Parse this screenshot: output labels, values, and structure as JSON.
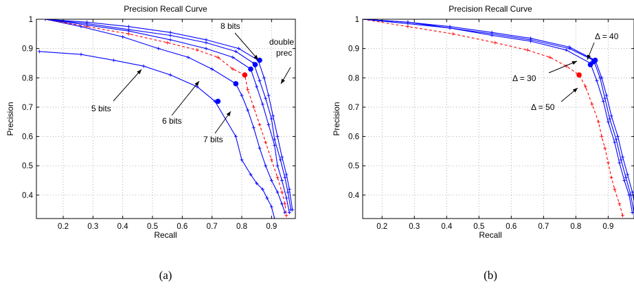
{
  "chart_data": [
    {
      "type": "line",
      "title": "Precision Recall Curve",
      "xlabel": "Recall",
      "ylabel": "Precision",
      "caption": "(a)",
      "xlim": [
        0.11,
        0.98
      ],
      "ylim": [
        0.32,
        1.0
      ],
      "xticks": [
        "0.2",
        "0.3",
        "0.4",
        "0.5",
        "0.6",
        "0.7",
        "0.8",
        "0.9"
      ],
      "yticks": [
        "0.4",
        "0.5",
        "0.6",
        "0.7",
        "0.8",
        "0.9",
        "1"
      ],
      "grid": true,
      "series": [
        {
          "color": "#0000ff",
          "dash": false,
          "x": [
            0.12,
            0.26,
            0.37,
            0.47,
            0.56,
            0.65,
            0.71,
            0.78,
            0.8,
            0.83,
            0.85,
            0.87,
            0.885,
            0.9,
            0.91
          ],
          "y": [
            0.89,
            0.88,
            0.86,
            0.84,
            0.81,
            0.77,
            0.72,
            0.6,
            0.52,
            0.47,
            0.44,
            0.42,
            0.39,
            0.36,
            0.32
          ],
          "marker_x": 0.72,
          "marker_y": 0.72
        },
        {
          "color": "#0000ff",
          "dash": false,
          "x": [
            0.14,
            0.26,
            0.4,
            0.52,
            0.62,
            0.7,
            0.78,
            0.8,
            0.82,
            0.84,
            0.86,
            0.88,
            0.9,
            0.92,
            0.935,
            0.945
          ],
          "y": [
            1.0,
            0.975,
            0.94,
            0.9,
            0.87,
            0.83,
            0.78,
            0.74,
            0.69,
            0.63,
            0.56,
            0.5,
            0.45,
            0.41,
            0.37,
            0.34
          ],
          "marker_x": 0.78,
          "marker_y": 0.78
        },
        {
          "color": "#ff0000",
          "dash": true,
          "x": [
            0.14,
            0.28,
            0.42,
            0.55,
            0.65,
            0.72,
            0.77,
            0.81,
            0.82,
            0.84,
            0.86,
            0.88,
            0.9,
            0.92,
            0.935,
            0.945,
            0.95
          ],
          "y": [
            1.0,
            0.975,
            0.95,
            0.92,
            0.895,
            0.87,
            0.83,
            0.81,
            0.76,
            0.7,
            0.64,
            0.58,
            0.52,
            0.46,
            0.41,
            0.37,
            0.33
          ],
          "marker_x": 0.81,
          "marker_y": 0.81
        },
        {
          "color": "#0000ff",
          "dash": false,
          "x": [
            0.14,
            0.28,
            0.42,
            0.56,
            0.68,
            0.77,
            0.83,
            0.85,
            0.87,
            0.89,
            0.91,
            0.92,
            0.935,
            0.95,
            0.96
          ],
          "y": [
            1.0,
            0.98,
            0.96,
            0.93,
            0.9,
            0.87,
            0.83,
            0.77,
            0.71,
            0.64,
            0.57,
            0.5,
            0.45,
            0.39,
            0.34
          ],
          "marker_x": 0.83,
          "marker_y": 0.83
        },
        {
          "color": "#0000ff",
          "dash": false,
          "x": [
            0.14,
            0.28,
            0.42,
            0.56,
            0.68,
            0.78,
            0.84,
            0.86,
            0.88,
            0.9,
            0.91,
            0.93,
            0.945,
            0.955,
            0.965
          ],
          "y": [
            1.0,
            0.985,
            0.965,
            0.945,
            0.92,
            0.89,
            0.85,
            0.79,
            0.73,
            0.66,
            0.59,
            0.52,
            0.46,
            0.41,
            0.35
          ],
          "marker_x": 0.845,
          "marker_y": 0.845
        },
        {
          "color": "#0000ff",
          "dash": false,
          "x": [
            0.14,
            0.28,
            0.42,
            0.56,
            0.68,
            0.79,
            0.855,
            0.875,
            0.89,
            0.905,
            0.92,
            0.935,
            0.95,
            0.96,
            0.97
          ],
          "y": [
            1.0,
            0.99,
            0.975,
            0.955,
            0.93,
            0.9,
            0.86,
            0.8,
            0.74,
            0.67,
            0.6,
            0.53,
            0.47,
            0.42,
            0.35
          ],
          "marker_x": 0.86,
          "marker_y": 0.86
        }
      ],
      "annotations": [
        {
          "text": "5 bits"
        },
        {
          "text": "6 bits"
        },
        {
          "text": "7 bits"
        },
        {
          "text": "8 bits"
        },
        {
          "text": "double"
        },
        {
          "text": "prec"
        }
      ]
    },
    {
      "type": "line",
      "title": "Precision Recall Curve",
      "xlabel": "Recall",
      "ylabel": "Precision",
      "caption": "(b)",
      "xlim": [
        0.14,
        0.98
      ],
      "ylim": [
        0.32,
        1.0
      ],
      "xticks": [
        "0.2",
        "0.3",
        "0.4",
        "0.5",
        "0.6",
        "0.7",
        "0.8",
        "0.9"
      ],
      "yticks": [
        "0.4",
        "0.5",
        "0.6",
        "0.7",
        "0.8",
        "0.9",
        "1"
      ],
      "grid": true,
      "series": [
        {
          "color": "#ff0000",
          "dash": true,
          "x": [
            0.14,
            0.28,
            0.42,
            0.55,
            0.65,
            0.72,
            0.77,
            0.81,
            0.83,
            0.85,
            0.87,
            0.88,
            0.89,
            0.9,
            0.91,
            0.92,
            0.935,
            0.945
          ],
          "y": [
            1.0,
            0.975,
            0.95,
            0.92,
            0.895,
            0.87,
            0.84,
            0.81,
            0.77,
            0.71,
            0.65,
            0.6,
            0.56,
            0.51,
            0.46,
            0.42,
            0.37,
            0.33
          ],
          "marker_x": 0.81,
          "marker_y": 0.81
        },
        {
          "color": "#0000ff",
          "dash": false,
          "x": [
            0.14,
            0.28,
            0.41,
            0.54,
            0.66,
            0.77,
            0.845,
            0.865,
            0.885,
            0.9,
            0.92,
            0.935,
            0.95,
            0.965,
            0.975
          ],
          "y": [
            1.0,
            0.985,
            0.97,
            0.945,
            0.925,
            0.895,
            0.85,
            0.79,
            0.72,
            0.65,
            0.58,
            0.51,
            0.45,
            0.4,
            0.34
          ],
          "marker_x": 0.845,
          "marker_y": 0.845
        },
        {
          "color": "#0000ff",
          "dash": false,
          "x": [
            0.14,
            0.28,
            0.41,
            0.54,
            0.66,
            0.78,
            0.855,
            0.875,
            0.89,
            0.905,
            0.925,
            0.94,
            0.955,
            0.97,
            0.98
          ],
          "y": [
            1.0,
            0.99,
            0.97,
            0.95,
            0.93,
            0.9,
            0.86,
            0.8,
            0.73,
            0.66,
            0.59,
            0.52,
            0.46,
            0.4,
            0.34
          ],
          "marker_x": 0.855,
          "marker_y": 0.855
        },
        {
          "color": "#0000ff",
          "dash": false,
          "x": [
            0.14,
            0.28,
            0.41,
            0.54,
            0.66,
            0.78,
            0.86,
            0.88,
            0.895,
            0.91,
            0.93,
            0.945,
            0.96,
            0.975,
            0.985
          ],
          "y": [
            1.0,
            0.99,
            0.975,
            0.955,
            0.935,
            0.905,
            0.86,
            0.8,
            0.74,
            0.67,
            0.6,
            0.53,
            0.47,
            0.41,
            0.35
          ],
          "marker_x": 0.86,
          "marker_y": 0.86
        }
      ],
      "annotations": [
        {
          "text": "Δ = 40"
        },
        {
          "text": "Δ = 30"
        },
        {
          "text": "Δ = 50"
        }
      ]
    }
  ]
}
